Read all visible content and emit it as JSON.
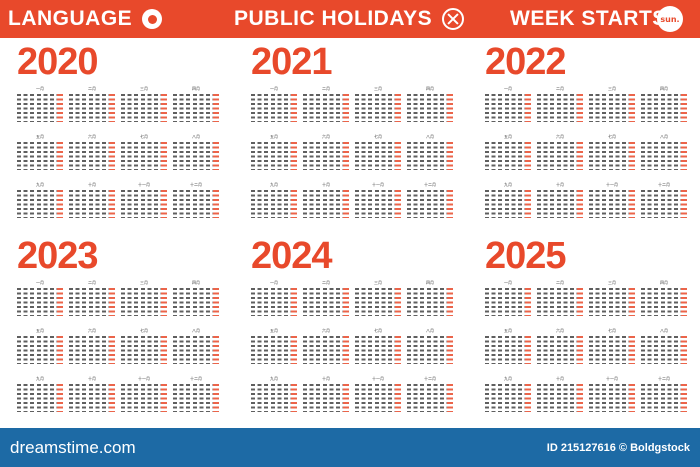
{
  "header": {
    "language_label": "LANGUAGE",
    "holidays_label": "PUBLIC HOLIDAYS",
    "week_starts_label": "WEEK STARTS",
    "week_start_value": "sun.",
    "flag_icon": "japan-flag-icon",
    "holidays_icon": "close-circle-icon"
  },
  "years": [
    {
      "label": "2020",
      "months": [
        "一月",
        "二月",
        "三月",
        "四月",
        "五月",
        "六月",
        "七月",
        "八月",
        "九月",
        "十月",
        "十一月",
        "十二月"
      ]
    },
    {
      "label": "2021",
      "months": [
        "一月",
        "二月",
        "三月",
        "四月",
        "五月",
        "六月",
        "七月",
        "八月",
        "九月",
        "十月",
        "十一月",
        "十二月"
      ]
    },
    {
      "label": "2022",
      "months": [
        "一月",
        "二月",
        "三月",
        "四月",
        "五月",
        "六月",
        "七月",
        "八月",
        "九月",
        "十月",
        "十一月",
        "十二月"
      ]
    },
    {
      "label": "2023",
      "months": [
        "一月",
        "二月",
        "三月",
        "四月",
        "五月",
        "六月",
        "七月",
        "八月",
        "九月",
        "十月",
        "十一月",
        "十二月"
      ]
    },
    {
      "label": "2024",
      "months": [
        "一月",
        "二月",
        "三月",
        "四月",
        "五月",
        "六月",
        "七月",
        "八月",
        "九月",
        "十月",
        "十一月",
        "十二月"
      ]
    },
    {
      "label": "2025",
      "months": [
        "一月",
        "二月",
        "三月",
        "四月",
        "五月",
        "六月",
        "七月",
        "八月",
        "九月",
        "十月",
        "十一月",
        "十二月"
      ]
    }
  ],
  "footer": {
    "site": "dreamstime.com",
    "image_id": "ID 215127616 © Boldgstock"
  },
  "colors": {
    "accent": "#e8492b",
    "footer": "#1d6aa5"
  }
}
